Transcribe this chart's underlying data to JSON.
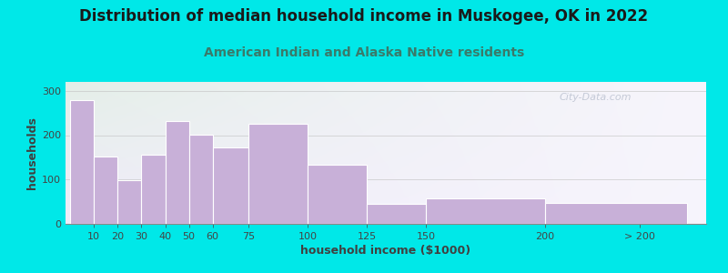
{
  "title": "Distribution of median household income in Muskogee, OK in 2022",
  "subtitle": "American Indian and Alaska Native residents",
  "xlabel": "household income ($1000)",
  "ylabel": "households",
  "bar_labels": [
    "10",
    "20",
    "30",
    "40",
    "50",
    "60",
    "75",
    "100",
    "125",
    "150",
    "200",
    "> 200"
  ],
  "bar_values": [
    278,
    152,
    98,
    155,
    232,
    202,
    172,
    225,
    133,
    45,
    57,
    47
  ],
  "bar_color": "#c8b0d8",
  "bar_edge_color": "#ffffff",
  "background_color": "#00e8e8",
  "plot_bg_top_left": "#dff0e0",
  "plot_bg_bottom_right": "#f0ecfa",
  "title_fontsize": 12,
  "subtitle_fontsize": 10,
  "subtitle_color": "#3a7a6a",
  "ylabel_color": "#404040",
  "xlabel_color": "#404040",
  "yticks": [
    0,
    100,
    200,
    300
  ],
  "ylim": [
    0,
    320
  ],
  "watermark": "City-Data.com"
}
